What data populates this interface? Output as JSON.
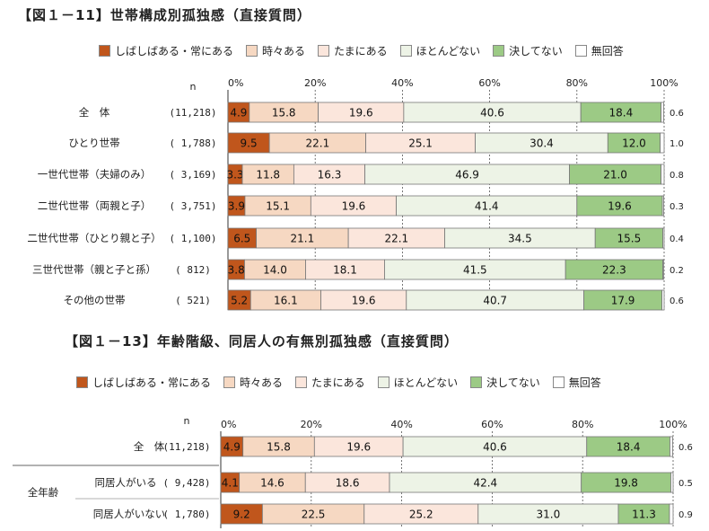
{
  "legend": {
    "items": [
      {
        "label": "しばしばある・常にある",
        "key": "c1"
      },
      {
        "label": "時々ある",
        "key": "c2"
      },
      {
        "label": "たまにある",
        "key": "c3"
      },
      {
        "label": "ほとんどない",
        "key": "c4"
      },
      {
        "label": "決してない",
        "key": "c5"
      },
      {
        "label": "無回答",
        "key": "c6"
      }
    ]
  },
  "colors": {
    "c1": "#c0561c",
    "c2": "#f6d8c2",
    "c3": "#fbe6dc",
    "c4": "#edf3e6",
    "c5": "#9cca85",
    "c6": "#ffffff"
  },
  "chart_data": [
    {
      "type": "bar",
      "orientation": "horizontal",
      "stacked": true,
      "title": "【図１－11】世帯構成別孤独感（直接質問）",
      "n_header": "n",
      "xlim": [
        0,
        100
      ],
      "xticks": [
        "0%",
        "20%",
        "40%",
        "60%",
        "80%",
        "100%"
      ],
      "series_names": [
        "しばしばある・常にある",
        "時々ある",
        "たまにある",
        "ほとんどない",
        "決してない",
        "無回答"
      ],
      "rows": [
        {
          "label": "全　体",
          "n": "(11,218)",
          "values": [
            4.9,
            15.8,
            19.6,
            40.6,
            18.4,
            0.6
          ]
        },
        {
          "label": "ひとり世帯",
          "n": "( 1,788)",
          "values": [
            9.5,
            22.1,
            25.1,
            30.4,
            12.0,
            1.0
          ]
        },
        {
          "label": "一世代世帯（夫婦のみ）",
          "n": "( 3,169)",
          "values": [
            3.3,
            11.8,
            16.3,
            46.9,
            21.0,
            0.8
          ]
        },
        {
          "label": "二世代世帯（両親と子）",
          "n": "( 3,751)",
          "values": [
            3.9,
            15.1,
            19.6,
            41.4,
            19.6,
            0.3
          ]
        },
        {
          "label": "二世代世帯（ひとり親と子）",
          "n": "( 1,100)",
          "values": [
            6.5,
            21.1,
            22.1,
            34.5,
            15.5,
            0.4
          ]
        },
        {
          "label": "三世代世帯（親と子と孫）",
          "n": "(   812)",
          "values": [
            3.8,
            14.0,
            18.1,
            41.5,
            22.3,
            0.2
          ]
        },
        {
          "label": "その他の世帯",
          "n": "(   521)",
          "values": [
            5.2,
            16.1,
            19.6,
            40.7,
            17.9,
            0.6
          ]
        }
      ]
    },
    {
      "type": "bar",
      "orientation": "horizontal",
      "stacked": true,
      "title": "【図１－13】年齢階級、同居人の有無別孤独感（直接質問）",
      "n_header": "n",
      "xlim": [
        0,
        100
      ],
      "xticks": [
        "0%",
        "20%",
        "40%",
        "60%",
        "80%",
        "100%"
      ],
      "series_names": [
        "しばしばある・常にある",
        "時々ある",
        "たまにある",
        "ほとんどない",
        "決してない",
        "無回答"
      ],
      "group_label": "全年齢",
      "rows": [
        {
          "label": "全　体",
          "n": "(11,218)",
          "values": [
            4.9,
            15.8,
            19.6,
            40.6,
            18.4,
            0.6
          ]
        },
        {
          "label": "同居人がいる",
          "n": "( 9,428)",
          "values": [
            4.1,
            14.6,
            18.6,
            42.4,
            19.8,
            0.5
          ]
        },
        {
          "label": "同居人がいない",
          "n": "( 1,780)",
          "values": [
            9.2,
            22.5,
            25.2,
            31.0,
            11.3,
            0.9
          ]
        }
      ]
    }
  ]
}
